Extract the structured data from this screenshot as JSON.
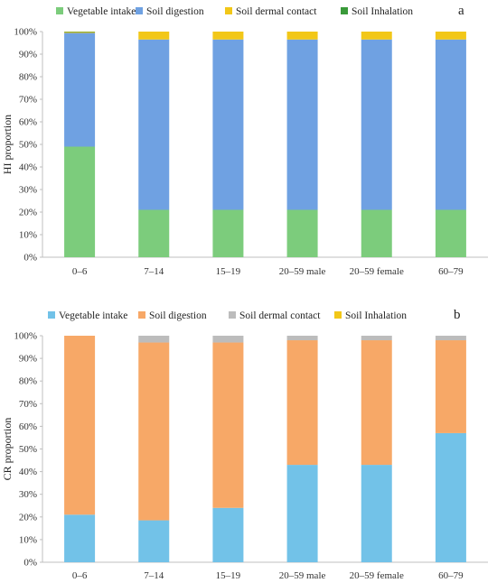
{
  "chart_data": [
    {
      "type": "bar",
      "stacked": true,
      "panel_label": "a",
      "ylabel": "HI proportion",
      "xlabel": "",
      "ylim": [
        0,
        100
      ],
      "yticks": [
        "0%",
        "10%",
        "20%",
        "30%",
        "40%",
        "50%",
        "60%",
        "70%",
        "80%",
        "90%",
        "100%"
      ],
      "grid": false,
      "legend_position": "top",
      "categories": [
        "0–6",
        "7–14",
        "15–19",
        "20–59 male",
        "20–59 female",
        "60–79"
      ],
      "series": [
        {
          "name": "Vegetable intake",
          "color": "#7ccc7c",
          "values": [
            49,
            21,
            21,
            21,
            21,
            21
          ]
        },
        {
          "name": "Soil digestion",
          "color": "#6fa1e2",
          "values": [
            50.4,
            75.5,
            75.5,
            75.5,
            75.5,
            75.5
          ]
        },
        {
          "name": "Soil dermal contact",
          "color": "#f2c718",
          "values": [
            0.5,
            3.5,
            3.5,
            3.5,
            3.5,
            3.5
          ]
        },
        {
          "name": "Soil Inhalation",
          "color": "#3a9a3a",
          "values": [
            0.1,
            0,
            0,
            0,
            0,
            0
          ]
        }
      ]
    },
    {
      "type": "bar",
      "stacked": true,
      "panel_label": "b",
      "ylabel": "CR proportion",
      "xlabel": "",
      "ylim": [
        0,
        100
      ],
      "yticks": [
        "0%",
        "10%",
        "20%",
        "30%",
        "40%",
        "50%",
        "60%",
        "70%",
        "80%",
        "90%",
        "100%"
      ],
      "grid": false,
      "legend_position": "top",
      "categories": [
        "0–6",
        "7–14",
        "15–19",
        "20–59 male",
        "20–59 female",
        "60–79"
      ],
      "series": [
        {
          "name": "Vegetable intake",
          "color": "#72c2e8",
          "values": [
            21,
            18.5,
            24,
            43,
            43,
            57
          ]
        },
        {
          "name": "Soil digestion",
          "color": "#f7a867",
          "values": [
            79,
            78.5,
            73,
            55,
            55,
            41
          ]
        },
        {
          "name": "Soil dermal contact",
          "color": "#bcbcbc",
          "values": [
            0,
            3,
            3,
            2,
            2,
            2
          ]
        },
        {
          "name": "Soil Inhalation",
          "color": "#f2c718",
          "values": [
            0,
            0,
            0,
            0,
            0,
            0
          ]
        }
      ]
    }
  ]
}
